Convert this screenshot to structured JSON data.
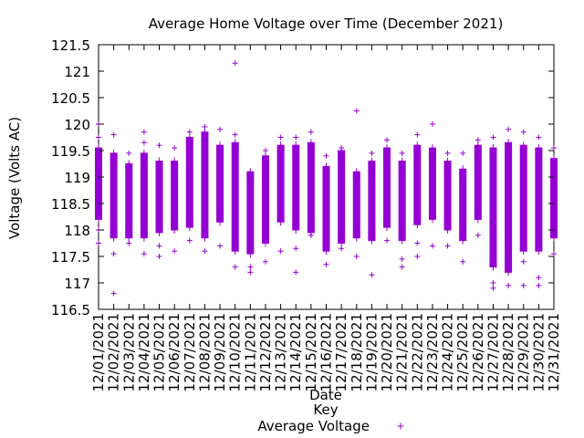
{
  "chart_data": {
    "type": "scatter",
    "title": "Average Home Voltage over Time (December 2021)",
    "xlabel": "Date",
    "ylabel": "Voltage (Volts AC)",
    "ylim": [
      116.5,
      121.5
    ],
    "yticks": [
      "116.5",
      "117",
      "117.5",
      "118",
      "118.5",
      "119",
      "119.5",
      "120",
      "120.5",
      "121",
      "121.5"
    ],
    "grid": false,
    "legend": {
      "title": "Key",
      "placement": "bottom-center"
    },
    "marker_color": "#9400D3",
    "marker": "plus",
    "series": [
      {
        "name": "Average Voltage",
        "points_by_day": [
          {
            "date": "12/01/2021",
            "min": 118.2,
            "max": 119.55,
            "outliers": [
              120.0,
              119.75,
              118.0,
              117.75
            ]
          },
          {
            "date": "12/02/2021",
            "min": 117.85,
            "max": 119.45,
            "outliers": [
              116.8,
              119.8,
              117.55
            ]
          },
          {
            "date": "12/03/2021",
            "min": 117.85,
            "max": 119.25,
            "outliers": [
              119.45,
              117.75
            ]
          },
          {
            "date": "12/04/2021",
            "min": 117.85,
            "max": 119.45,
            "outliers": [
              119.85,
              119.65,
              117.55
            ]
          },
          {
            "date": "12/05/2021",
            "min": 117.95,
            "max": 119.3,
            "outliers": [
              119.6,
              117.5,
              117.7
            ]
          },
          {
            "date": "12/06/2021",
            "min": 118.0,
            "max": 119.3,
            "outliers": [
              119.55,
              117.6
            ]
          },
          {
            "date": "12/07/2021",
            "min": 118.05,
            "max": 119.75,
            "outliers": [
              119.85,
              117.8
            ]
          },
          {
            "date": "12/08/2021",
            "min": 117.85,
            "max": 119.85,
            "outliers": [
              119.95,
              117.6
            ]
          },
          {
            "date": "12/09/2021",
            "min": 118.15,
            "max": 119.6,
            "outliers": [
              119.9,
              117.7
            ]
          },
          {
            "date": "12/10/2021",
            "min": 117.6,
            "max": 119.65,
            "outliers": [
              121.15,
              119.8,
              117.3
            ]
          },
          {
            "date": "12/11/2021",
            "min": 117.55,
            "max": 119.1,
            "outliers": [
              117.3,
              117.2
            ]
          },
          {
            "date": "12/12/2021",
            "min": 117.75,
            "max": 119.4,
            "outliers": [
              119.5,
              117.4
            ]
          },
          {
            "date": "12/13/2021",
            "min": 118.15,
            "max": 119.6,
            "outliers": [
              119.75,
              117.6
            ]
          },
          {
            "date": "12/14/2021",
            "min": 118.0,
            "max": 119.6,
            "outliers": [
              119.75,
              117.2,
              117.65
            ]
          },
          {
            "date": "12/15/2021",
            "min": 117.95,
            "max": 119.65,
            "outliers": [
              119.85,
              117.9
            ]
          },
          {
            "date": "12/16/2021",
            "min": 117.6,
            "max": 119.2,
            "outliers": [
              119.4,
              117.35
            ]
          },
          {
            "date": "12/17/2021",
            "min": 117.75,
            "max": 119.5,
            "outliers": [
              119.55,
              117.65
            ]
          },
          {
            "date": "12/18/2021",
            "min": 117.85,
            "max": 119.1,
            "outliers": [
              120.25,
              117.5
            ]
          },
          {
            "date": "12/19/2021",
            "min": 117.8,
            "max": 119.3,
            "outliers": [
              119.45,
              117.15
            ]
          },
          {
            "date": "12/20/2021",
            "min": 118.05,
            "max": 119.55,
            "outliers": [
              119.7,
              117.8
            ]
          },
          {
            "date": "12/21/2021",
            "min": 117.8,
            "max": 119.3,
            "outliers": [
              119.45,
              117.3,
              117.45
            ]
          },
          {
            "date": "12/22/2021",
            "min": 118.1,
            "max": 119.6,
            "outliers": [
              119.8,
              117.5,
              117.75
            ]
          },
          {
            "date": "12/23/2021",
            "min": 118.2,
            "max": 119.55,
            "outliers": [
              120.0,
              117.7
            ]
          },
          {
            "date": "12/24/2021",
            "min": 118.0,
            "max": 119.3,
            "outliers": [
              119.45,
              117.7
            ]
          },
          {
            "date": "12/25/2021",
            "min": 117.8,
            "max": 119.15,
            "outliers": [
              119.45,
              117.4
            ]
          },
          {
            "date": "12/26/2021",
            "min": 118.2,
            "max": 119.6,
            "outliers": [
              119.7,
              117.9
            ]
          },
          {
            "date": "12/27/2021",
            "min": 117.3,
            "max": 119.55,
            "outliers": [
              119.75,
              116.9,
              117.0
            ]
          },
          {
            "date": "12/28/2021",
            "min": 117.2,
            "max": 119.65,
            "outliers": [
              119.9,
              116.95
            ]
          },
          {
            "date": "12/29/2021",
            "min": 117.6,
            "max": 119.6,
            "outliers": [
              119.85,
              116.95,
              117.4
            ]
          },
          {
            "date": "12/30/2021",
            "min": 117.6,
            "max": 119.55,
            "outliers": [
              119.75,
              116.95,
              117.1
            ]
          },
          {
            "date": "12/31/2021",
            "min": 117.85,
            "max": 119.35,
            "outliers": [
              119.55,
              117.55
            ]
          }
        ]
      }
    ]
  }
}
